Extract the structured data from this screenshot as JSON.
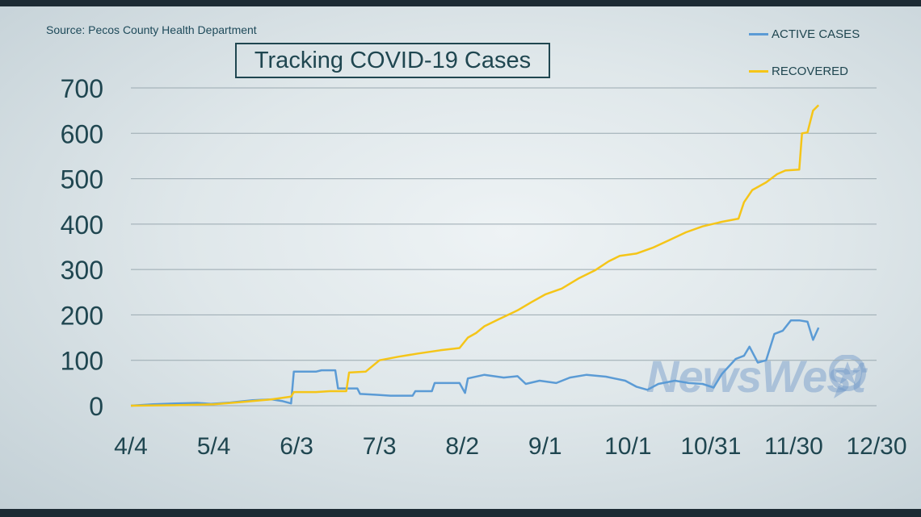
{
  "source": "Source: Pecos County Health Department",
  "title": "Tracking COVID-19 Cases",
  "watermark": "NewsWest",
  "colors": {
    "active": "#5b9bd5",
    "recovered": "#f5c518",
    "text": "#1f4650",
    "grid": "#9aa9b0"
  },
  "chart_data": {
    "type": "line",
    "title": "Tracking COVID-19 Cases",
    "xlabel": "",
    "ylabel": "",
    "ylim": [
      0,
      700
    ],
    "xlim": [
      "4/4",
      "12/30"
    ],
    "yticks": [
      "0",
      "100",
      "200",
      "300",
      "400",
      "500",
      "600",
      "700"
    ],
    "xticks": [
      "4/4",
      "5/4",
      "6/3",
      "7/3",
      "8/2",
      "9/1",
      "10/1",
      "10/31",
      "11/30",
      "12/30"
    ],
    "legend_position": "top-right",
    "grid": true,
    "series": [
      {
        "name": "ACTIVE CASES",
        "color": "#5b9bd5",
        "points": [
          [
            "4/4",
            0
          ],
          [
            "4/12",
            3
          ],
          [
            "4/20",
            5
          ],
          [
            "4/28",
            6
          ],
          [
            "5/3",
            4
          ],
          [
            "5/10",
            7
          ],
          [
            "5/18",
            12
          ],
          [
            "5/25",
            14
          ],
          [
            "5/29",
            10
          ],
          [
            "6/1",
            5
          ],
          [
            "6/2",
            75
          ],
          [
            "6/10",
            75
          ],
          [
            "6/12",
            78
          ],
          [
            "6/17",
            78
          ],
          [
            "6/18",
            38
          ],
          [
            "6/25",
            38
          ],
          [
            "6/26",
            26
          ],
          [
            "7/2",
            24
          ],
          [
            "7/7",
            22
          ],
          [
            "7/15",
            22
          ],
          [
            "7/16",
            32
          ],
          [
            "7/22",
            32
          ],
          [
            "7/23",
            50
          ],
          [
            "8/1",
            50
          ],
          [
            "8/3",
            28
          ],
          [
            "8/4",
            60
          ],
          [
            "8/10",
            68
          ],
          [
            "8/17",
            62
          ],
          [
            "8/22",
            65
          ],
          [
            "8/25",
            48
          ],
          [
            "8/30",
            55
          ],
          [
            "9/5",
            50
          ],
          [
            "9/10",
            62
          ],
          [
            "9/16",
            68
          ],
          [
            "9/23",
            64
          ],
          [
            "9/30",
            55
          ],
          [
            "10/4",
            42
          ],
          [
            "10/8",
            35
          ],
          [
            "10/12",
            48
          ],
          [
            "10/18",
            55
          ],
          [
            "10/23",
            50
          ],
          [
            "10/28",
            48
          ],
          [
            "11/1",
            40
          ],
          [
            "11/4",
            70
          ],
          [
            "11/9",
            103
          ],
          [
            "11/12",
            110
          ],
          [
            "11/14",
            130
          ],
          [
            "11/17",
            95
          ],
          [
            "11/20",
            100
          ],
          [
            "11/23",
            158
          ],
          [
            "11/26",
            165
          ],
          [
            "11/29",
            188
          ],
          [
            "12/2",
            188
          ],
          [
            "12/5",
            185
          ],
          [
            "12/7",
            145
          ],
          [
            "12/9",
            172
          ]
        ]
      },
      {
        "name": "RECOVERED",
        "color": "#f5c518",
        "points": [
          [
            "4/4",
            0
          ],
          [
            "4/20",
            1
          ],
          [
            "5/4",
            3
          ],
          [
            "5/14",
            8
          ],
          [
            "5/25",
            14
          ],
          [
            "6/1",
            20
          ],
          [
            "6/2",
            30
          ],
          [
            "6/10",
            30
          ],
          [
            "6/15",
            32
          ],
          [
            "6/21",
            32
          ],
          [
            "6/22",
            73
          ],
          [
            "6/28",
            75
          ],
          [
            "7/3",
            100
          ],
          [
            "7/10",
            108
          ],
          [
            "7/17",
            115
          ],
          [
            "7/25",
            122
          ],
          [
            "8/1",
            127
          ],
          [
            "8/4",
            150
          ],
          [
            "8/7",
            160
          ],
          [
            "8/10",
            175
          ],
          [
            "8/15",
            190
          ],
          [
            "8/22",
            210
          ],
          [
            "8/27",
            228
          ],
          [
            "9/1",
            245
          ],
          [
            "9/7",
            258
          ],
          [
            "9/13",
            280
          ],
          [
            "9/19",
            298
          ],
          [
            "9/24",
            318
          ],
          [
            "9/28",
            330
          ],
          [
            "10/4",
            335
          ],
          [
            "10/10",
            348
          ],
          [
            "10/16",
            365
          ],
          [
            "10/22",
            382
          ],
          [
            "10/28",
            395
          ],
          [
            "11/4",
            405
          ],
          [
            "11/10",
            412
          ],
          [
            "11/12",
            448
          ],
          [
            "11/15",
            475
          ],
          [
            "11/20",
            492
          ],
          [
            "11/24",
            510
          ],
          [
            "11/27",
            518
          ],
          [
            "12/2",
            520
          ],
          [
            "12/3",
            600
          ],
          [
            "12/5",
            602
          ],
          [
            "12/7",
            650
          ],
          [
            "12/9",
            662
          ]
        ]
      }
    ]
  }
}
